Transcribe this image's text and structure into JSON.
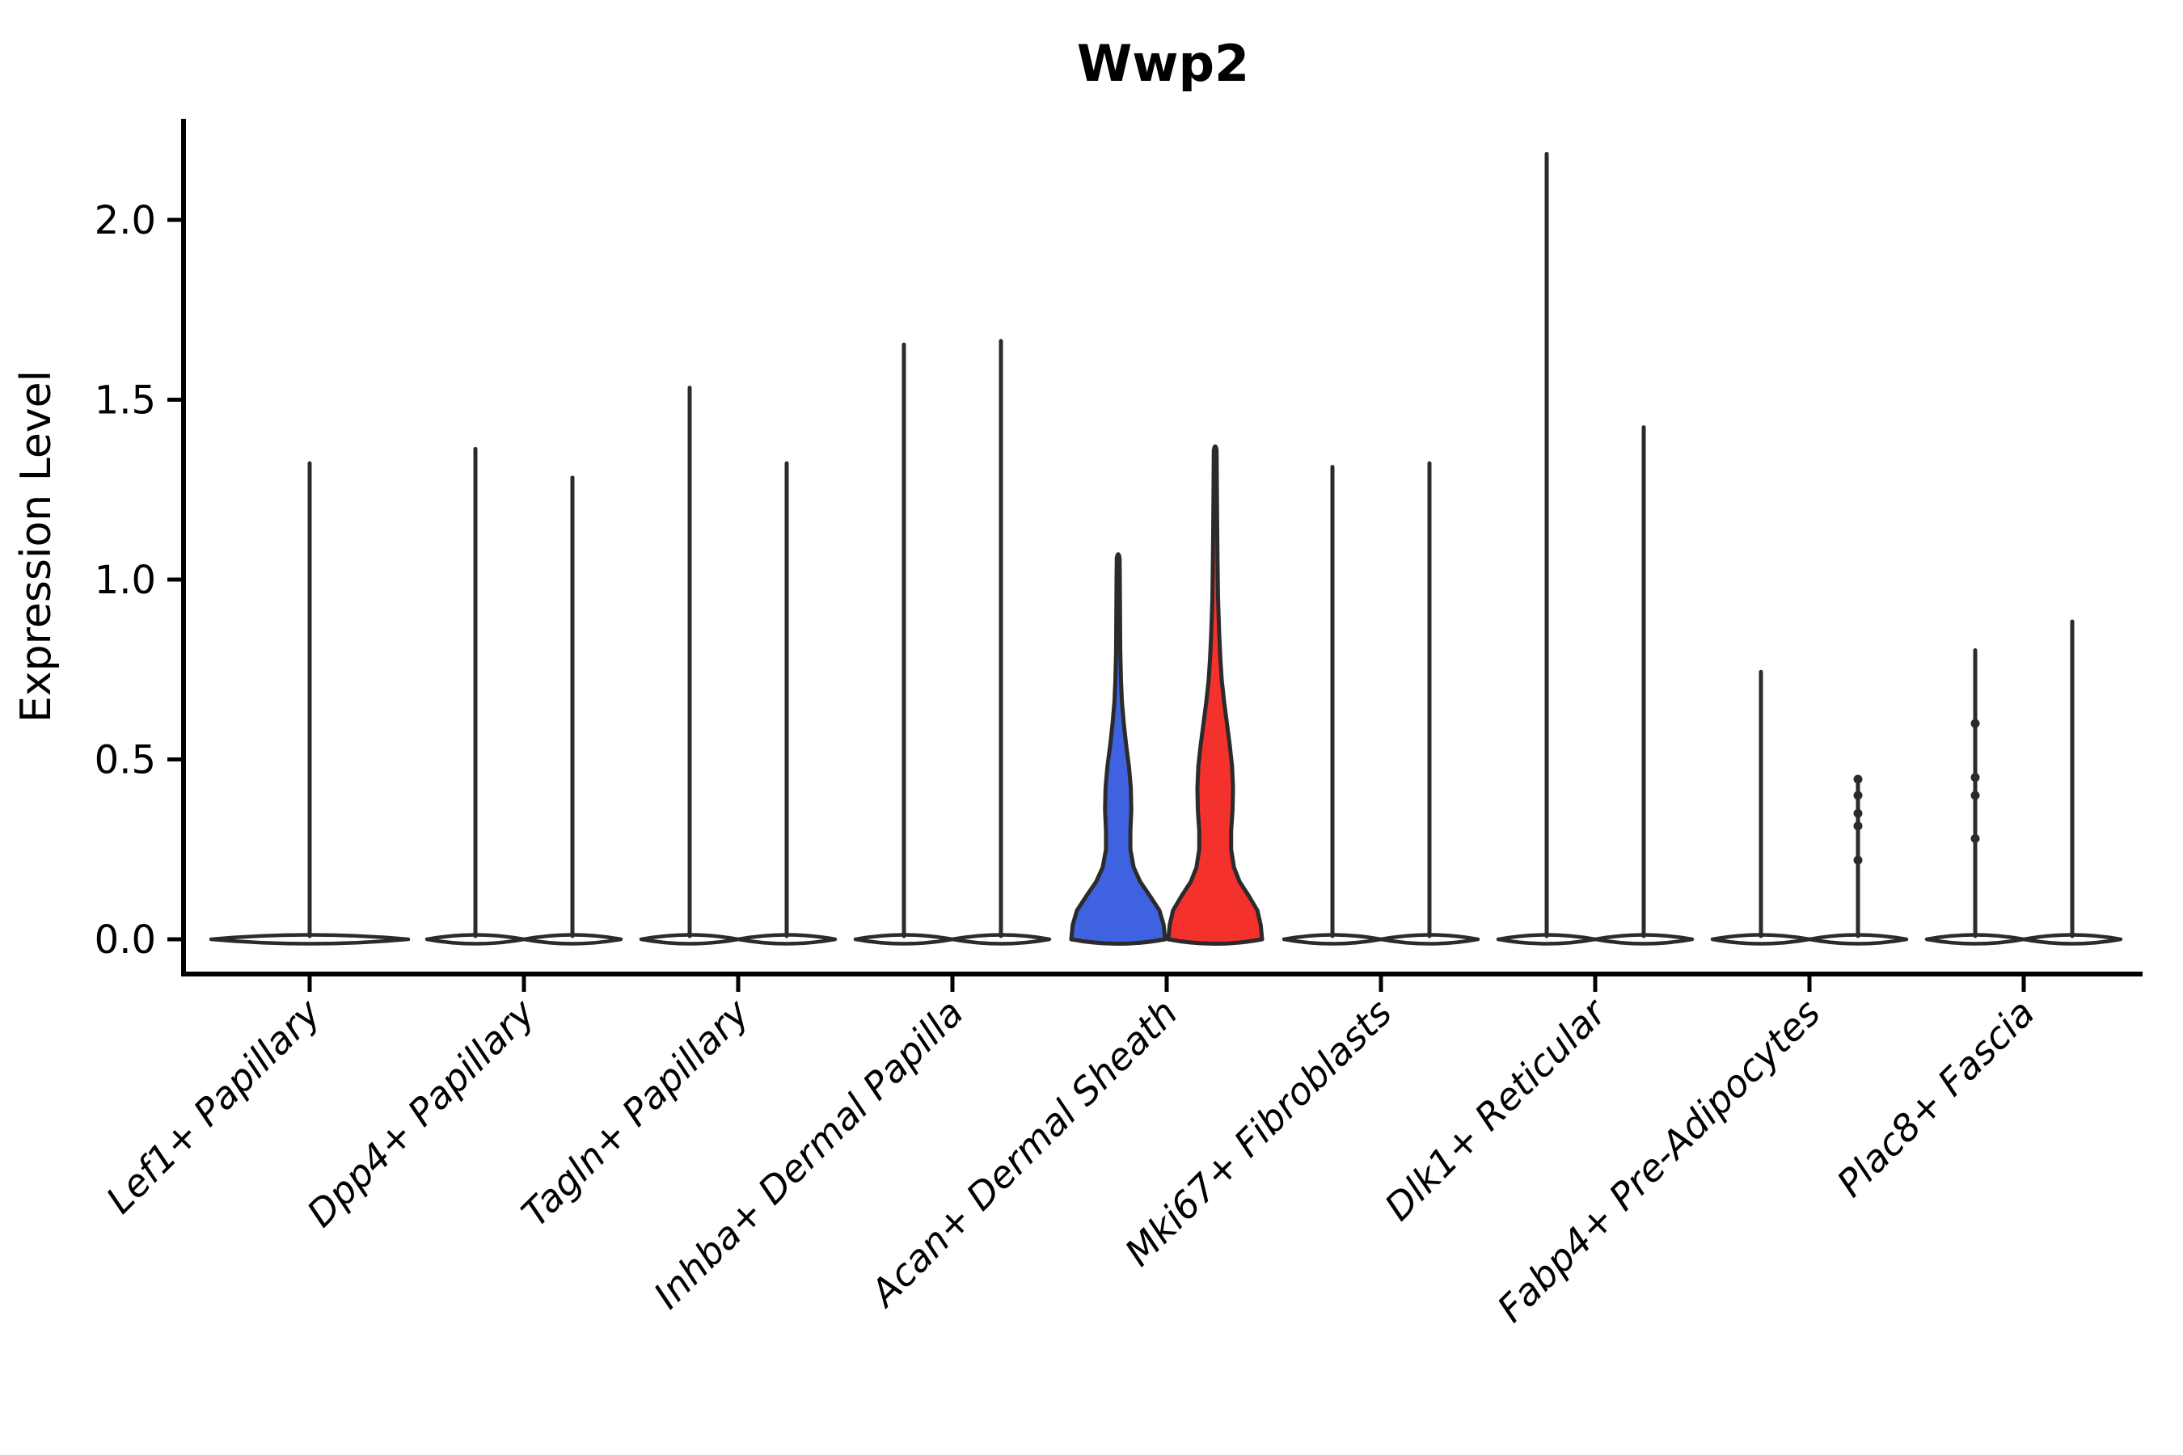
{
  "figure": {
    "background": "#ffffff"
  },
  "chart_data": {
    "type": "violin",
    "title": "Wwp2",
    "ylabel": "Expression Level",
    "xlabel": "",
    "yticks": [
      0.0,
      0.5,
      1.0,
      1.5,
      2.0
    ],
    "ytick_labels": [
      "0.0",
      "0.5",
      "1.0",
      "1.5",
      "2.0"
    ],
    "ylim": [
      -0.1,
      2.28
    ],
    "grid": false,
    "legend": "none",
    "categories": [
      "Lef1+ Papillary",
      "Dpp4+ Papillary",
      "Tagln+ Papillary",
      "Inhba+ Dermal Papilla",
      "Acan+ Dermal Sheath",
      "Mki67+ Fibroblasts",
      "Dlk1+ Reticular",
      "Fabp4+ Pre-Adipocytes",
      "Plac8+ Fascia"
    ],
    "style": {
      "outline_color": "#2b2b2b",
      "axis_color": "#000000",
      "blue": "#3f63e0",
      "red": "#f5312d",
      "plain_fill": "#ffffff"
    },
    "violins": [
      {
        "category": "Lef1+ Papillary",
        "items": [
          {
            "slot": "center",
            "type": "spike",
            "max": 1.33
          }
        ]
      },
      {
        "category": "Dpp4+ Papillary",
        "items": [
          {
            "slot": "left",
            "type": "spike",
            "max": 1.37
          },
          {
            "slot": "right",
            "type": "spike",
            "max": 1.29
          }
        ]
      },
      {
        "category": "Tagln+ Papillary",
        "items": [
          {
            "slot": "left",
            "type": "spike",
            "max": 1.54
          },
          {
            "slot": "right",
            "type": "spike",
            "max": 1.33
          }
        ]
      },
      {
        "category": "Inhba+ Dermal Papilla",
        "items": [
          {
            "slot": "left",
            "type": "spike",
            "max": 1.66
          },
          {
            "slot": "right",
            "type": "spike",
            "max": 1.67
          }
        ]
      },
      {
        "category": "Acan+ Dermal Sheath",
        "items": [
          {
            "slot": "left",
            "type": "violin",
            "fill": "blue",
            "max": 1.06
          },
          {
            "slot": "right",
            "type": "violin",
            "fill": "red",
            "max": 1.36
          }
        ]
      },
      {
        "category": "Mki67+ Fibroblasts",
        "items": [
          {
            "slot": "left",
            "type": "spike",
            "max": 1.32
          },
          {
            "slot": "right",
            "type": "spike",
            "max": 1.33
          }
        ]
      },
      {
        "category": "Dlk1+ Reticular",
        "items": [
          {
            "slot": "left",
            "type": "spike",
            "max": 2.19
          },
          {
            "slot": "right",
            "type": "spike",
            "max": 1.43
          }
        ]
      },
      {
        "category": "Fabp4+ Pre-Adipocytes",
        "items": [
          {
            "slot": "left",
            "type": "spike",
            "max": 0.75
          },
          {
            "slot": "right",
            "type": "spike",
            "max": 0.445,
            "dots": [
              0.445,
              0.4,
              0.35,
              0.315,
              0.22
            ]
          }
        ]
      },
      {
        "category": "Plac8+ Fascia",
        "items": [
          {
            "slot": "left",
            "type": "spike",
            "max": 0.81,
            "dots": [
              0.6,
              0.45,
              0.4,
              0.28
            ]
          },
          {
            "slot": "right",
            "type": "spike",
            "max": 0.89
          }
        ]
      }
    ],
    "profiles": {
      "blue": [
        [
          0,
          1
        ],
        [
          0.04,
          0.97
        ],
        [
          0.08,
          0.88
        ],
        [
          0.12,
          0.68
        ],
        [
          0.16,
          0.47
        ],
        [
          0.2,
          0.33
        ],
        [
          0.25,
          0.26
        ],
        [
          0.3,
          0.26
        ],
        [
          0.36,
          0.28
        ],
        [
          0.42,
          0.27
        ],
        [
          0.48,
          0.23
        ],
        [
          0.54,
          0.17
        ],
        [
          0.6,
          0.12
        ],
        [
          0.66,
          0.08
        ],
        [
          0.72,
          0.06
        ],
        [
          0.8,
          0.045
        ],
        [
          0.9,
          0.04
        ],
        [
          1.0,
          0.035
        ],
        [
          1.06,
          0.03
        ]
      ],
      "red": [
        [
          0,
          1
        ],
        [
          0.04,
          0.97
        ],
        [
          0.08,
          0.9
        ],
        [
          0.12,
          0.72
        ],
        [
          0.16,
          0.52
        ],
        [
          0.2,
          0.4
        ],
        [
          0.25,
          0.34
        ],
        [
          0.3,
          0.34
        ],
        [
          0.36,
          0.37
        ],
        [
          0.42,
          0.38
        ],
        [
          0.48,
          0.36
        ],
        [
          0.54,
          0.31
        ],
        [
          0.6,
          0.25
        ],
        [
          0.66,
          0.19
        ],
        [
          0.72,
          0.14
        ],
        [
          0.78,
          0.11
        ],
        [
          0.85,
          0.085
        ],
        [
          0.95,
          0.06
        ],
        [
          1.05,
          0.05
        ],
        [
          1.15,
          0.042
        ],
        [
          1.25,
          0.036
        ],
        [
          1.36,
          0.03
        ]
      ]
    }
  }
}
